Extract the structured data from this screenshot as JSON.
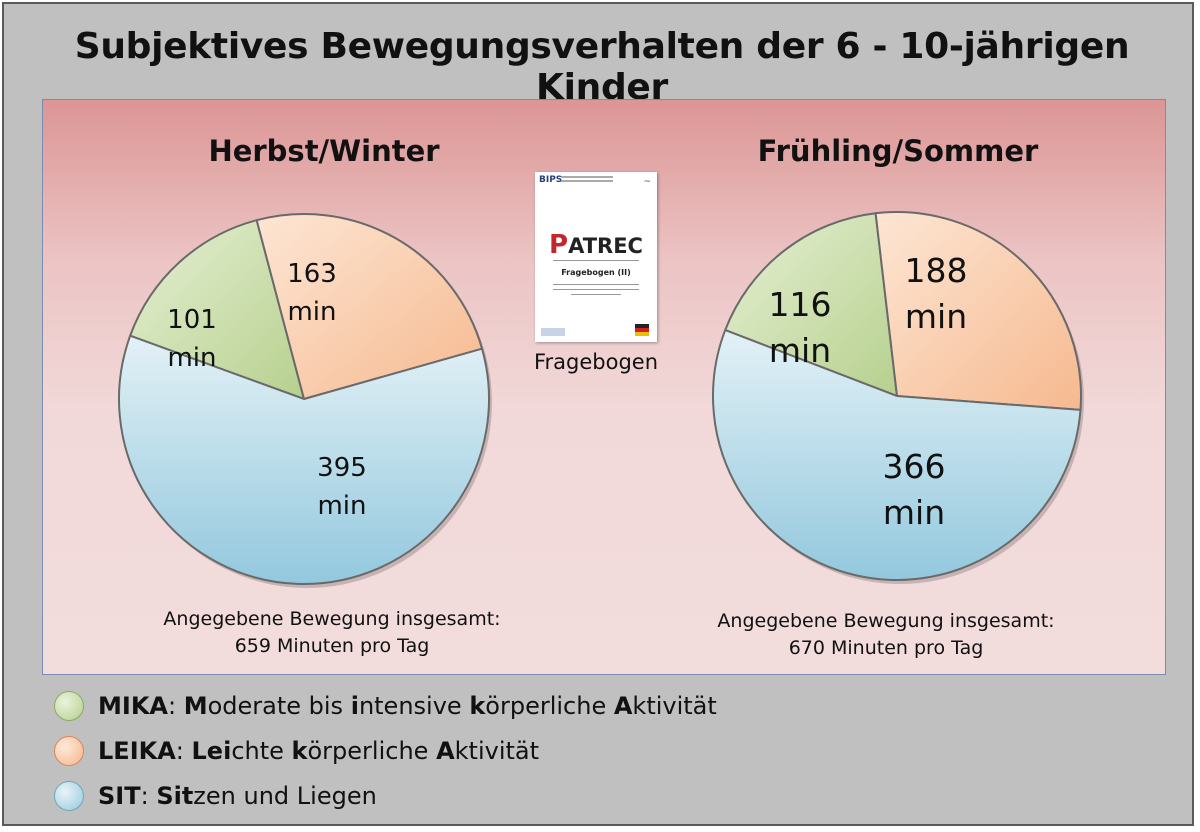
{
  "title": "Subjektives Bewegungsverhalten der 6 - 10-jährigen Kinder",
  "colors": {
    "mika": "#c3d9a1",
    "leika": "#f9c9a4",
    "sit": "#aed5e4"
  },
  "chart_data": [
    {
      "type": "pie",
      "title": "Herbst/Winter",
      "categories": [
        "MIKA",
        "LEIKA",
        "SIT"
      ],
      "values": [
        101,
        163,
        395
      ],
      "labels": [
        {
          "value": "101",
          "unit": "min"
        },
        {
          "value": "163",
          "unit": "min"
        },
        {
          "value": "395",
          "unit": "min"
        }
      ],
      "total_line1": "Angegebene Bewegung insgesamt:",
      "total_line2": "659 Minuten pro Tag"
    },
    {
      "type": "pie",
      "title": "Frühling/Sommer",
      "categories": [
        "MIKA",
        "LEIKA",
        "SIT"
      ],
      "values": [
        116,
        188,
        366
      ],
      "labels": [
        {
          "value": "116",
          "unit": "min"
        },
        {
          "value": "188",
          "unit": "min"
        },
        {
          "value": "366",
          "unit": "min"
        }
      ],
      "total_line1": "Angegebene Bewegung insgesamt:",
      "total_line2": "670 Minuten pro Tag"
    }
  ],
  "questionnaire": {
    "org": "BIPS",
    "logo_p": "P",
    "logo_rest": "ATREC",
    "subtitle": "Fragebogen (II)",
    "caption": "Fragebogen"
  },
  "legend": [
    {
      "key": "mika",
      "abbr": "MIKA",
      "parts": [
        [
          "M",
          "oderate bis "
        ],
        [
          "i",
          "ntensive "
        ],
        [
          "k",
          "örperliche "
        ],
        [
          "A",
          "ktivität"
        ]
      ]
    },
    {
      "key": "leika",
      "abbr": "LEIKA",
      "parts": [
        [
          "Lei",
          "chte "
        ],
        [
          "k",
          "örperliche "
        ],
        [
          "A",
          "ktivität"
        ]
      ]
    },
    {
      "key": "sit",
      "abbr": "SIT",
      "parts": [
        [
          "Sit",
          "zen und Liegen"
        ]
      ]
    }
  ]
}
